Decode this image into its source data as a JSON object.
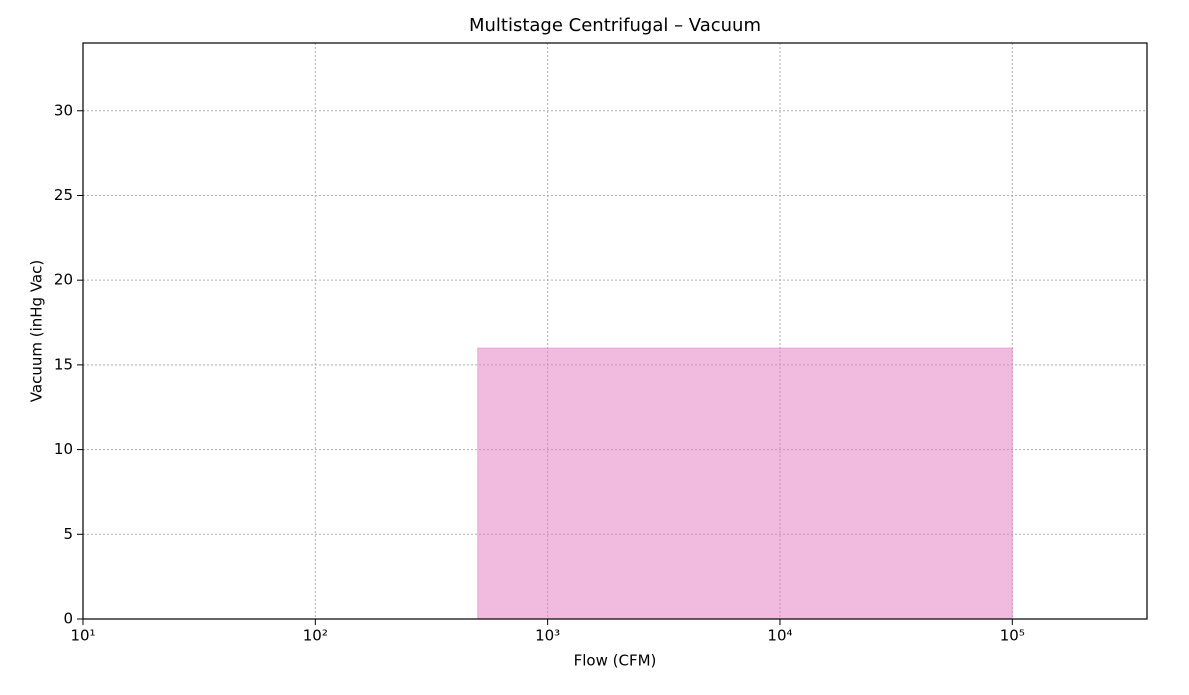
{
  "chart_data": {
    "type": "area",
    "title": "Multistage Centrifugal – Vacuum",
    "xlabel": "Flow (CFM)",
    "ylabel": "Vacuum (inHg Vac)",
    "x": [
      500,
      100000
    ],
    "values": [
      16,
      16
    ],
    "color": "#e377c2",
    "alpha": 0.5,
    "xscale": "log",
    "xlim": [
      10,
      380000
    ],
    "ylim": [
      0,
      34
    ],
    "xticks": [
      {
        "value": 10,
        "label": "10¹"
      },
      {
        "value": 100,
        "label": "10²"
      },
      {
        "value": 1000,
        "label": "10³"
      },
      {
        "value": 10000,
        "label": "10⁴"
      },
      {
        "value": 100000,
        "label": "10⁵"
      }
    ],
    "yticks": [
      0,
      5,
      10,
      15,
      20,
      25,
      30
    ],
    "grid": true
  }
}
